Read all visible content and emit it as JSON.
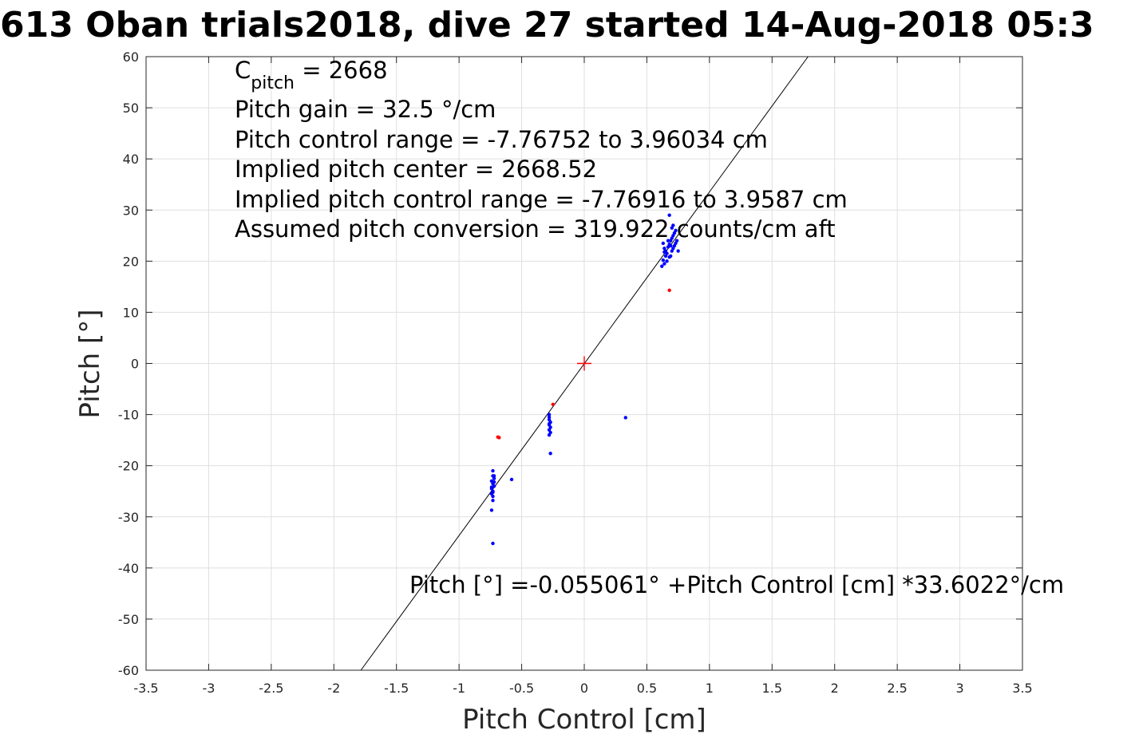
{
  "chart_data": {
    "type": "scatter",
    "title": "613 Oban trials2018, dive 27 started 14-Aug-2018 05:3",
    "xlabel": "Pitch Control [cm]",
    "ylabel": "Pitch [°]",
    "xlim": [
      -3.5,
      3.5
    ],
    "ylim": [
      -60,
      60
    ],
    "xticks": [
      -3.5,
      -3,
      -2.5,
      -2,
      -1.5,
      -1,
      -0.5,
      0,
      0.5,
      1,
      1.5,
      2,
      2.5,
      3,
      3.5
    ],
    "xtick_labels": [
      "-3.5",
      "-3",
      "-2.5",
      "-2",
      "-1.5",
      "-1",
      "-0.5",
      "0",
      "0.5",
      "1",
      "1.5",
      "2",
      "2.5",
      "3",
      "3.5"
    ],
    "yticks": [
      -60,
      -50,
      -40,
      -30,
      -20,
      -10,
      0,
      10,
      20,
      30,
      40,
      50,
      60
    ],
    "ytick_labels": [
      "-60",
      "-50",
      "-40",
      "-30",
      "-20",
      "-10",
      "0",
      "10",
      "20",
      "30",
      "40",
      "50",
      "60"
    ],
    "grid": true,
    "annotations": {
      "cpitch_main": "C",
      "cpitch_sub": "pitch",
      "cpitch_value": " = 2668",
      "lines": [
        "Pitch gain = 32.5 °/cm",
        "Pitch control range = -7.76752 to 3.96034 cm",
        "Implied pitch center = 2668.52",
        "Implied pitch control range = -7.76916 to 3.9587 cm",
        "Assumed pitch conversion = 319.922 counts/cm aft"
      ],
      "fit_equation": "Pitch [°] =-0.055061° +Pitch Control [cm] *33.6022°/cm"
    },
    "fit_line": {
      "intercept": -0.055061,
      "slope": 33.6022,
      "color": "#000000"
    },
    "center_marker": {
      "x": 0,
      "y": 0,
      "color": "#ff0000"
    },
    "series": [
      {
        "color": "#0000ff",
        "points": [
          [
            0.68,
            29.0
          ],
          [
            0.63,
            23.5
          ],
          [
            0.64,
            22.5
          ],
          [
            0.65,
            22.0
          ],
          [
            0.66,
            21.5
          ],
          [
            0.67,
            22.8
          ],
          [
            0.68,
            23.3
          ],
          [
            0.69,
            24.0
          ],
          [
            0.7,
            24.5
          ],
          [
            0.71,
            25.0
          ],
          [
            0.72,
            25.5
          ],
          [
            0.73,
            26.0
          ],
          [
            0.7,
            22.0
          ],
          [
            0.69,
            21.0
          ],
          [
            0.68,
            20.8
          ],
          [
            0.72,
            23.0
          ],
          [
            0.74,
            24.0
          ],
          [
            0.75,
            22.0
          ],
          [
            0.66,
            20.0
          ],
          [
            0.64,
            19.5
          ],
          [
            0.67,
            24.0
          ],
          [
            0.71,
            27.0
          ],
          [
            0.7,
            26.5
          ],
          [
            0.65,
            21.0
          ],
          [
            0.63,
            20.2
          ],
          [
            0.62,
            19.0
          ],
          [
            0.69,
            23.0
          ],
          [
            0.71,
            22.5
          ],
          [
            0.73,
            23.5
          ],
          [
            0.64,
            21.8
          ],
          [
            -0.73,
            -21.0
          ],
          [
            -0.73,
            -22.0
          ],
          [
            -0.74,
            -23.0
          ],
          [
            -0.73,
            -23.5
          ],
          [
            -0.72,
            -24.0
          ],
          [
            -0.74,
            -24.5
          ],
          [
            -0.73,
            -25.0
          ],
          [
            -0.74,
            -25.5
          ],
          [
            -0.73,
            -26.0
          ],
          [
            -0.72,
            -22.5
          ],
          [
            -0.73,
            -26.8
          ],
          [
            -0.74,
            -28.7
          ],
          [
            -0.73,
            -35.2
          ],
          [
            -0.58,
            -22.7
          ],
          [
            -0.72,
            -23.2
          ],
          [
            -0.74,
            -24.2
          ],
          [
            -0.73,
            -25.2
          ],
          [
            -0.72,
            -22.0
          ],
          [
            -0.28,
            -10.0
          ],
          [
            -0.28,
            -10.5
          ],
          [
            -0.28,
            -11.0
          ],
          [
            -0.27,
            -11.5
          ],
          [
            -0.28,
            -12.0
          ],
          [
            -0.27,
            -12.5
          ],
          [
            -0.28,
            -13.0
          ],
          [
            -0.27,
            -13.5
          ],
          [
            -0.28,
            -14.0
          ],
          [
            -0.27,
            -17.6
          ],
          [
            0.33,
            -10.6
          ],
          [
            -0.28,
            -11.8
          ]
        ]
      },
      {
        "color": "#ff0000",
        "points": [
          [
            0.68,
            14.3
          ],
          [
            -0.69,
            -14.4
          ],
          [
            -0.68,
            -14.5
          ],
          [
            -0.25,
            -8.0
          ]
        ]
      }
    ]
  }
}
